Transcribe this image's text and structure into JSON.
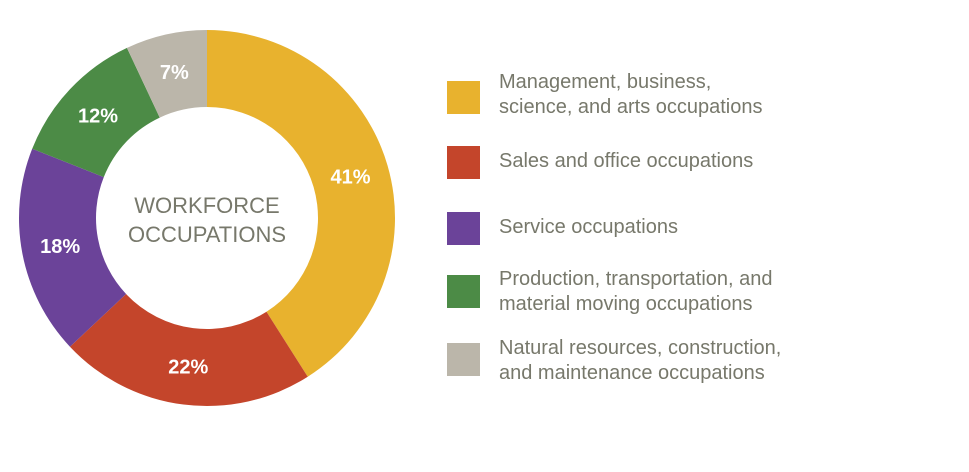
{
  "chart_data": {
    "type": "pie",
    "center_label": [
      "WORKFORCE",
      "OCCUPATIONS"
    ],
    "slices": [
      {
        "name": "Management, business, science, and arts occupations",
        "value": 41,
        "label": "41%",
        "color": "#e8b22e"
      },
      {
        "name": "Sales and office occupations",
        "value": 22,
        "label": "22%",
        "color": "#c4452b"
      },
      {
        "name": "Service occupations",
        "value": 18,
        "label": "18%",
        "color": "#6b4399"
      },
      {
        "name": "Production, transportation, and material moving occupations",
        "value": 12,
        "label": "12%",
        "color": "#4c8b46"
      },
      {
        "name": "Natural resources, construction, and maintenance occupations",
        "value": 7,
        "label": "7%",
        "color": "#bbb6aa"
      }
    ],
    "legend": {
      "placement": "right",
      "items": [
        {
          "lines": [
            "Management, business,",
            "science, and arts occupations"
          ],
          "color": "#e8b22e"
        },
        {
          "lines": [
            "Sales and office occupations"
          ],
          "color": "#c4452b"
        },
        {
          "lines": [
            "Service occupations"
          ],
          "color": "#6b4399"
        },
        {
          "lines": [
            "Production, transportation, and",
            "material moving occupations"
          ],
          "color": "#4c8b46"
        },
        {
          "lines": [
            "Natural resources, construction,",
            "and maintenance occupations"
          ],
          "color": "#bbb6aa"
        }
      ]
    }
  }
}
